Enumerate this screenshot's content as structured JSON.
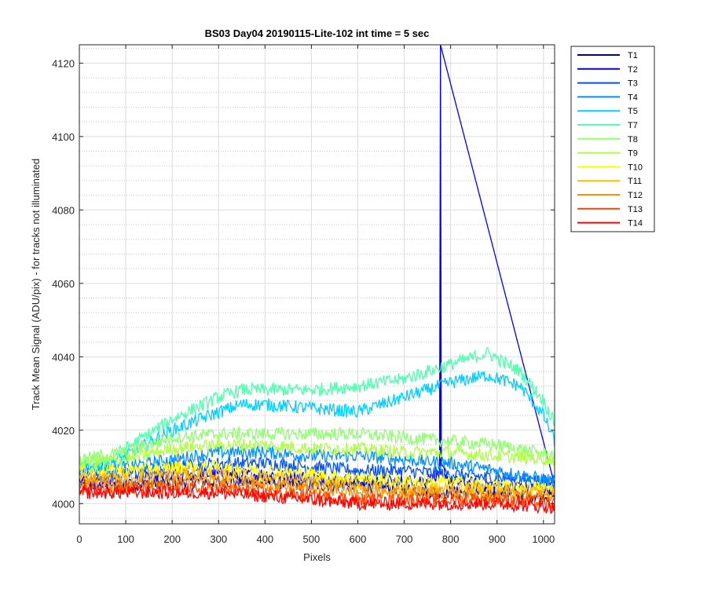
{
  "chart_data": {
    "type": "line",
    "title": "BS03 Day04 20190115-Lite-102 int time = 5 sec",
    "xlabel": "Pixels",
    "ylabel": "Track Mean Signal (ADU/pix) - for tracks not illuminated",
    "xlim": [
      0,
      1024
    ],
    "ylim": [
      3994.5,
      4125
    ],
    "xticks": [
      0,
      100,
      200,
      300,
      400,
      500,
      600,
      700,
      800,
      900,
      1000
    ],
    "yticks": [
      4000,
      4020,
      4040,
      4060,
      4080,
      4100,
      4120
    ],
    "grid": "major solid, minor dotted on y",
    "legend_position": "outside top-right",
    "series": [
      {
        "name": "T1",
        "color": "#00008f",
        "x": [
          0,
          100,
          200,
          300,
          400,
          500,
          600,
          700,
          800,
          900,
          1024
        ],
        "y": [
          4005,
          4005,
          4006,
          4006,
          4006,
          4005,
          4005,
          4004,
          4003,
          4003,
          4002
        ]
      },
      {
        "name": "T2",
        "color": "#0000ff",
        "x": [
          0,
          100,
          200,
          300,
          400,
          500,
          600,
          700,
          777,
          778,
          779,
          800,
          900,
          1024
        ],
        "y": [
          4006,
          4006,
          4008,
          4008,
          4008,
          4007,
          4006,
          4006,
          4007,
          4125,
          4010,
          4006,
          4005,
          4004
        ]
      },
      {
        "name": "T3",
        "color": "#0050ff",
        "x": [
          0,
          100,
          200,
          300,
          400,
          500,
          600,
          700,
          800,
          900,
          1024
        ],
        "y": [
          4008,
          4008,
          4010,
          4011,
          4011,
          4010,
          4009,
          4009,
          4008,
          4007,
          4006
        ]
      },
      {
        "name": "T4",
        "color": "#008fff",
        "x": [
          0,
          100,
          200,
          300,
          400,
          500,
          600,
          700,
          800,
          900,
          1024
        ],
        "y": [
          4010,
          4010,
          4012,
          4014,
          4014,
          4013,
          4013,
          4012,
          4011,
          4009,
          4006
        ]
      },
      {
        "name": "T5",
        "color": "#00cfff",
        "x": [
          0,
          50,
          100,
          200,
          300,
          350,
          400,
          500,
          600,
          700,
          800,
          880,
          950,
          1000,
          1024
        ],
        "y": [
          4010,
          4010,
          4013,
          4020,
          4025,
          4027,
          4027,
          4026,
          4025,
          4029,
          4033,
          4035,
          4032,
          4024,
          4017
        ]
      },
      {
        "name": "T7",
        "color": "#50ffaf",
        "x": [
          0,
          50,
          100,
          200,
          300,
          350,
          400,
          500,
          600,
          700,
          800,
          880,
          950,
          1000,
          1024
        ],
        "y": [
          4011,
          4011,
          4015,
          4023,
          4029,
          4031,
          4031,
          4031,
          4032,
          4034,
          4038,
          4041,
          4036,
          4028,
          4022
        ]
      },
      {
        "name": "T8",
        "color": "#8fff70",
        "x": [
          0,
          100,
          200,
          300,
          400,
          500,
          600,
          700,
          800,
          900,
          1024
        ],
        "y": [
          4012,
          4014,
          4018,
          4019,
          4019,
          4019,
          4019,
          4018,
          4017,
          4016,
          4013
        ]
      },
      {
        "name": "T9",
        "color": "#afff40",
        "x": [
          0,
          100,
          200,
          300,
          400,
          500,
          600,
          700,
          800,
          900,
          1024
        ],
        "y": [
          4011,
          4012,
          4015,
          4016,
          4016,
          4015,
          4015,
          4014,
          4014,
          4013,
          4012
        ]
      },
      {
        "name": "T10",
        "color": "#ffff00",
        "x": [
          0,
          100,
          200,
          300,
          400,
          500,
          600,
          700,
          800,
          900,
          1024
        ],
        "y": [
          4009,
          4009,
          4010,
          4010,
          4009,
          4008,
          4007,
          4006,
          4006,
          4005,
          4004
        ]
      },
      {
        "name": "T11",
        "color": "#ffbf00",
        "x": [
          0,
          100,
          200,
          300,
          400,
          500,
          600,
          700,
          800,
          900,
          1024
        ],
        "y": [
          4007,
          4007,
          4008,
          4008,
          4007,
          4006,
          4005,
          4004,
          4004,
          4004,
          4003
        ]
      },
      {
        "name": "T12",
        "color": "#ff8f00",
        "x": [
          0,
          100,
          200,
          300,
          400,
          500,
          600,
          700,
          800,
          900,
          1024
        ],
        "y": [
          4006,
          4005,
          4006,
          4006,
          4005,
          4004,
          4003,
          4003,
          4003,
          4002,
          4002
        ]
      },
      {
        "name": "T13",
        "color": "#ff4000",
        "x": [
          0,
          100,
          200,
          300,
          400,
          500,
          600,
          700,
          800,
          900,
          1024
        ],
        "y": [
          4004,
          4004,
          4004,
          4004,
          4003,
          4002,
          4001,
          4001,
          4001,
          4001,
          4000
        ]
      },
      {
        "name": "T14",
        "color": "#ff0000",
        "x": [
          0,
          100,
          200,
          300,
          400,
          500,
          600,
          700,
          800,
          900,
          1024
        ],
        "y": [
          4003,
          4003,
          4003,
          4003,
          4002,
          4001,
          4000,
          4000,
          4000,
          4000,
          3999
        ]
      }
    ]
  }
}
